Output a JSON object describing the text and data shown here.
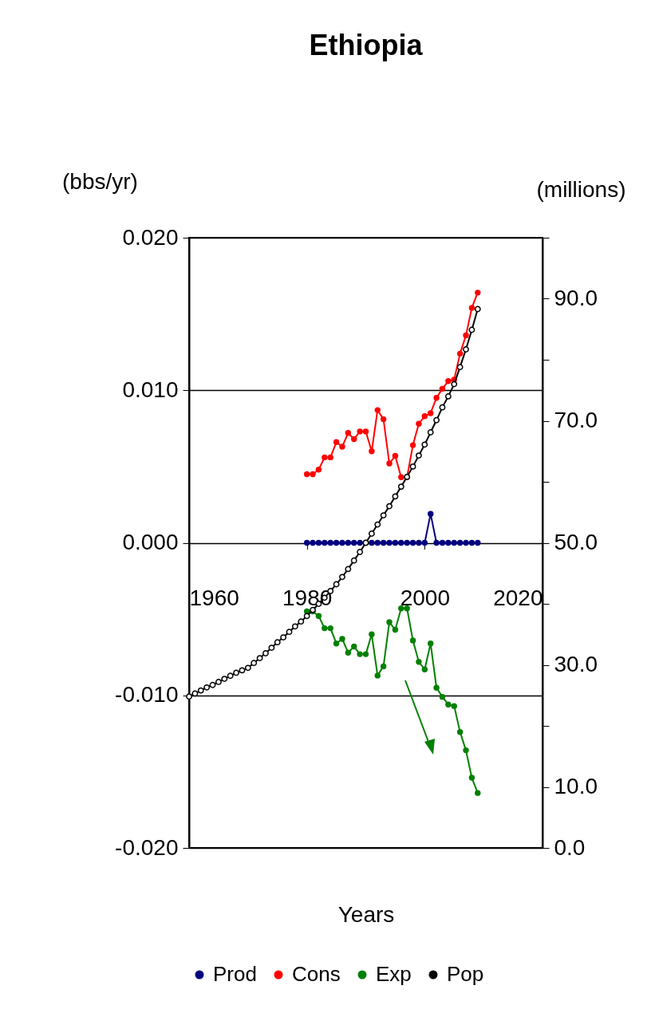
{
  "chart_data": {
    "type": "line",
    "title": "Ethiopia",
    "xlabel": "Years",
    "ylabel": "(bbs/yr)",
    "y2label": "(millions)",
    "xlim": [
      1960,
      2020
    ],
    "xticks": [
      1960,
      1980,
      2000,
      2020
    ],
    "ylim": [
      -0.02,
      0.02
    ],
    "yticks": [
      {
        "value": -0.02,
        "label": "-0.020"
      },
      {
        "value": -0.01,
        "label": "-0.010"
      },
      {
        "value": 0,
        "label": "0.000"
      },
      {
        "value": 0.01,
        "label": "0.010"
      },
      {
        "value": 0.02,
        "label": "0.020"
      }
    ],
    "y2lim": [
      0,
      100
    ],
    "y2ticks": [
      {
        "value": 0,
        "label": "0.0"
      },
      {
        "value": 10,
        "label": "10.0"
      },
      {
        "value": 20,
        "label": null
      },
      {
        "value": 30,
        "label": "30.0"
      },
      {
        "value": 40,
        "label": null
      },
      {
        "value": 50,
        "label": "50.0"
      },
      {
        "value": 60,
        "label": null
      },
      {
        "value": 70,
        "label": "70.0"
      },
      {
        "value": 80,
        "label": null
      },
      {
        "value": 90,
        "label": "90.0"
      },
      {
        "value": 100,
        "label": null
      }
    ],
    "x": [
      1980,
      1981,
      1982,
      1983,
      1984,
      1985,
      1986,
      1987,
      1988,
      1989,
      1990,
      1991,
      1992,
      1993,
      1994,
      1995,
      1996,
      1997,
      1998,
      1999,
      2000,
      2001,
      2002,
      2003,
      2004,
      2005,
      2006,
      2007,
      2008,
      2009
    ],
    "series": [
      {
        "name": "Prod",
        "color": "#000080",
        "values": [
          0,
          0,
          0,
          0,
          0,
          0,
          0,
          0,
          0,
          0,
          0,
          0,
          0,
          0,
          0,
          0,
          0,
          0,
          0,
          0,
          0,
          0.0019,
          0,
          0,
          0,
          0,
          0,
          0,
          0,
          0
        ]
      },
      {
        "name": "Cons",
        "color": "#ff0000",
        "values": [
          0.0045,
          0.0045,
          0.0048,
          0.0056,
          0.0056,
          0.0066,
          0.0063,
          0.0072,
          0.0068,
          0.0073,
          0.0073,
          0.006,
          0.0087,
          0.0081,
          0.0052,
          0.0057,
          0.0043,
          0.0043,
          0.0064,
          0.0078,
          0.0083,
          0.0085,
          0.0095,
          0.0101,
          0.0106,
          0.0107,
          0.0124,
          0.0136,
          0.0154,
          0.0164
        ]
      },
      {
        "name": "Exp",
        "color": "#008000",
        "values": [
          -0.0045,
          -0.0045,
          -0.0048,
          -0.0056,
          -0.0056,
          -0.0066,
          -0.0063,
          -0.0072,
          -0.0068,
          -0.0073,
          -0.0073,
          -0.006,
          -0.0087,
          -0.0081,
          -0.0052,
          -0.0057,
          -0.0043,
          -0.0043,
          -0.0064,
          -0.0078,
          -0.0083,
          -0.0066,
          -0.0095,
          -0.0101,
          -0.0106,
          -0.0107,
          -0.0124,
          -0.0136,
          -0.0154,
          -0.0164
        ]
      },
      {
        "name": "Pop",
        "color": "#000000",
        "axis": "y2",
        "x": [
          1960,
          1961,
          1962,
          1963,
          1964,
          1965,
          1966,
          1967,
          1968,
          1969,
          1970,
          1971,
          1972,
          1973,
          1974,
          1975,
          1976,
          1977,
          1978,
          1979,
          1980,
          1981,
          1982,
          1983,
          1984,
          1985,
          1986,
          1987,
          1988,
          1989,
          1990,
          1991,
          1992,
          1993,
          1994,
          1995,
          1996,
          1997,
          1998,
          1999,
          2000,
          2001,
          2002,
          2003,
          2004,
          2005,
          2006,
          2007,
          2008,
          2009
        ],
        "values": [
          24.8,
          25.3,
          25.8,
          26.3,
          26.7,
          27.2,
          27.7,
          28.2,
          28.7,
          29.1,
          29.5,
          30.3,
          31.1,
          31.9,
          32.8,
          33.7,
          34.5,
          35.4,
          36.3,
          37.1,
          38.0,
          39.0,
          40.0,
          41.0,
          42.1,
          43.2,
          44.4,
          45.7,
          47.1,
          48.5,
          50.0,
          51.5,
          53.0,
          54.5,
          56.0,
          57.6,
          59.2,
          60.8,
          62.5,
          64.3,
          66.1,
          68.1,
          70.1,
          72.2,
          74.0,
          76.0,
          78.8,
          81.7,
          84.9,
          88.3
        ]
      }
    ],
    "grid": "y",
    "legend": "bottom",
    "marker": "circle",
    "line_style": "solid"
  }
}
